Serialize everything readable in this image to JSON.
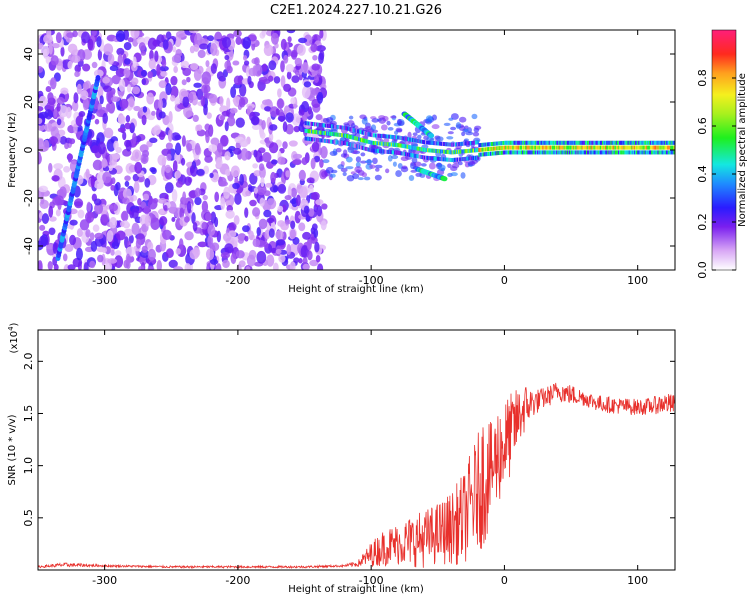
{
  "title": "C2E1.2024.227.10.21.G26",
  "chart_data": [
    {
      "type": "heatmap",
      "xlabel": "Height of straight line (km)",
      "ylabel": "Frequency (Hz)",
      "xlim": [
        -350,
        128
      ],
      "ylim": [
        -50,
        50
      ],
      "xticks": [
        -300,
        -200,
        -100,
        0,
        100
      ],
      "yticks": [
        -40,
        -20,
        0,
        20,
        40
      ],
      "colorbar": {
        "label": "Normalized spectral amplitude",
        "range": [
          0,
          1
        ],
        "ticks": [
          0.0,
          0.2,
          0.4,
          0.6,
          0.8
        ]
      },
      "regions": [
        {
          "x_range": [
            -350,
            -135
          ],
          "y_range": [
            -50,
            50
          ],
          "amplitude": 0.15
        },
        {
          "x_range": [
            -135,
            -20
          ],
          "y_range": [
            -12,
            14
          ],
          "amplitude": 0.45
        },
        {
          "x_range": [
            -20,
            128
          ],
          "y_range": [
            -3,
            3
          ],
          "amplitude": 0.7
        }
      ],
      "features": [
        {
          "x": [
            -335,
            -325,
            -315,
            -305
          ],
          "y": [
            -45,
            -20,
            5,
            30
          ],
          "amplitude": 0.25
        },
        {
          "x": [
            -150,
            -120,
            -100,
            -80,
            -60,
            -40,
            -20,
            0,
            50,
            128
          ],
          "y": [
            8,
            6,
            3,
            2,
            0,
            -1,
            0,
            1,
            1,
            1
          ],
          "amplitude": 0.5
        }
      ]
    },
    {
      "type": "line",
      "xlabel": "Height of straight line (km)",
      "ylabel": "SNR (10 * v/v)",
      "y_multiplier": "(x10",
      "y_multiplier_exp": "4",
      "xlim": [
        -350,
        128
      ],
      "ylim": [
        0,
        2.3
      ],
      "xticks": [
        -300,
        -200,
        -100,
        0,
        100
      ],
      "yticks": [
        0.5,
        1.0,
        1.5,
        2.0
      ],
      "series": [
        {
          "color": "#e8302c",
          "x": [
            -350,
            -330,
            -300,
            -250,
            -200,
            -150,
            -120,
            -110,
            -100,
            -90,
            -80,
            -70,
            -60,
            -50,
            -40,
            -30,
            -25,
            -20,
            -15,
            -10,
            -5,
            0,
            5,
            10,
            15,
            20,
            25,
            30,
            35,
            40,
            50,
            60,
            70,
            80,
            90,
            100,
            110,
            120,
            128
          ],
          "y": [
            0.03,
            0.05,
            0.04,
            0.03,
            0.03,
            0.03,
            0.04,
            0.06,
            0.15,
            0.22,
            0.25,
            0.28,
            0.3,
            0.35,
            0.4,
            0.5,
            0.65,
            0.75,
            0.9,
            0.95,
            1.1,
            1.2,
            1.3,
            1.45,
            1.55,
            1.6,
            1.62,
            1.65,
            1.68,
            1.72,
            1.68,
            1.65,
            1.6,
            1.58,
            1.57,
            1.56,
            1.57,
            1.6,
            1.58
          ],
          "noise": [
            0.01,
            0.02,
            0.01,
            0.01,
            0.01,
            0.01,
            0.01,
            0.03,
            0.12,
            0.18,
            0.2,
            0.25,
            0.28,
            0.3,
            0.35,
            0.45,
            0.5,
            0.55,
            0.7,
            0.45,
            0.5,
            0.45,
            0.4,
            0.3,
            0.25,
            0.15,
            0.12,
            0.1,
            0.1,
            0.1,
            0.1,
            0.08,
            0.08,
            0.08,
            0.08,
            0.08,
            0.08,
            0.1,
            0.1
          ]
        }
      ]
    }
  ]
}
